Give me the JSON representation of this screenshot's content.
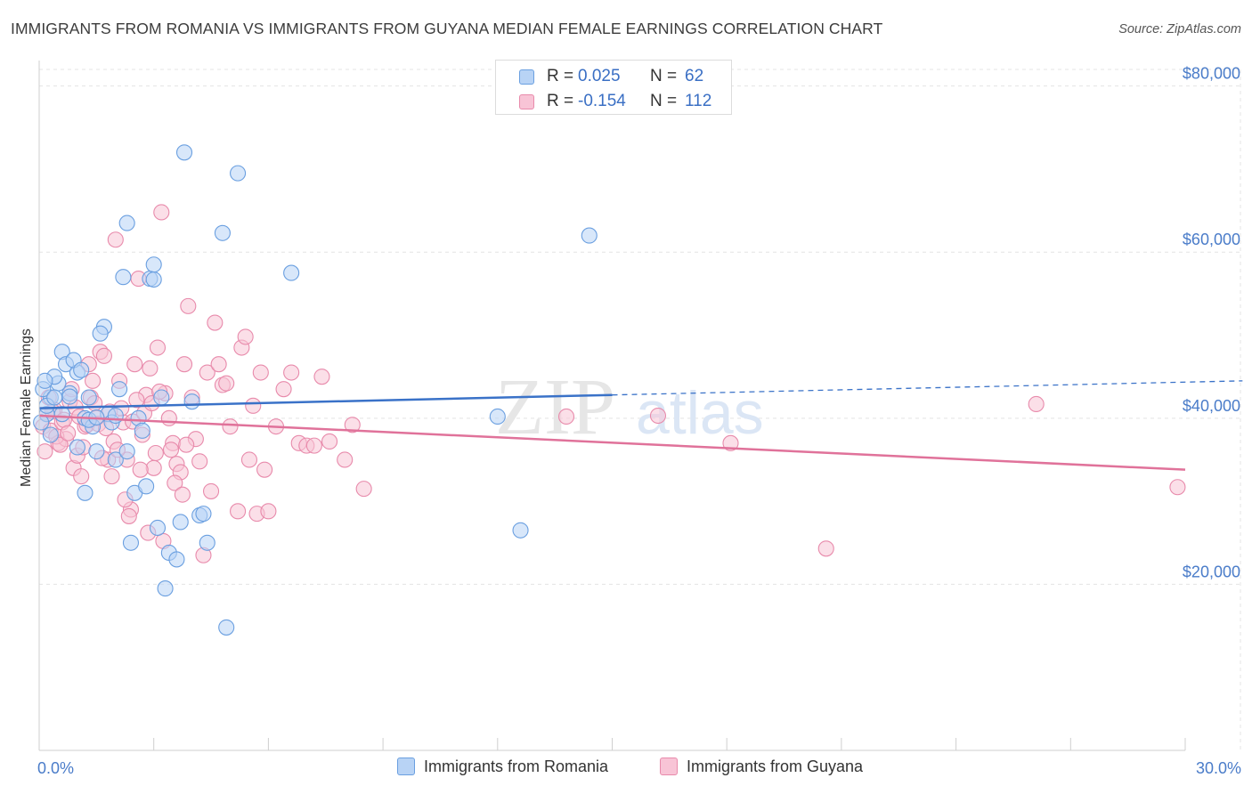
{
  "title": "IMMIGRANTS FROM ROMANIA VS IMMIGRANTS FROM GUYANA MEDIAN FEMALE EARNINGS CORRELATION CHART",
  "source": "Source: ZipAtlas.com",
  "colors": {
    "romania_fill": "#b8d3f5",
    "romania_stroke": "#6a9fe0",
    "romania_line": "#3a72c8",
    "guyana_fill": "#f8c4d6",
    "guyana_stroke": "#e88aab",
    "guyana_line": "#e0729a",
    "grid": "#e4e4e4",
    "tick_label": "#4a7cc9"
  },
  "legend": {
    "r_label": "R =",
    "n_label": "N =",
    "romania_r": "0.025",
    "romania_n": "62",
    "guyana_r": "-0.154",
    "guyana_n": "112"
  },
  "watermark": {
    "zip": "ZIP",
    "atlas": "atlas"
  },
  "chart_data": {
    "type": "scatter",
    "xlabel": "",
    "ylabel": "Median Female Earnings",
    "xlim": [
      0,
      30
    ],
    "ylim": [
      0,
      82000
    ],
    "x_tick_labels": [
      "0.0%",
      "30.0%"
    ],
    "y_ticks": [
      20000,
      40000,
      60000,
      80000
    ],
    "y_tick_labels": [
      "$20,000",
      "$40,000",
      "$60,000",
      "$80,000"
    ],
    "grid": true,
    "series": [
      {
        "name": "Immigrants from Romania",
        "trend": {
          "x": [
            0,
            15
          ],
          "y": [
            41200,
            42800
          ],
          "dashed_to_x": 31.5,
          "dashed_to_y": 44500
        },
        "points": [
          [
            0.3,
            42500
          ],
          [
            0.2,
            40500
          ],
          [
            0.5,
            44200
          ],
          [
            0.6,
            48000
          ],
          [
            0.7,
            46500
          ],
          [
            0.8,
            43000
          ],
          [
            1.0,
            45500
          ],
          [
            0.9,
            47000
          ],
          [
            1.1,
            45800
          ],
          [
            1.2,
            40000
          ],
          [
            1.3,
            42500
          ],
          [
            1.4,
            39000
          ],
          [
            1.5,
            36000
          ],
          [
            1.7,
            51000
          ],
          [
            1.6,
            50200
          ],
          [
            1.8,
            40500
          ],
          [
            1.9,
            39500
          ],
          [
            2.0,
            35000
          ],
          [
            2.1,
            43500
          ],
          [
            2.2,
            57000
          ],
          [
            2.3,
            63500
          ],
          [
            2.3,
            36000
          ],
          [
            2.4,
            25000
          ],
          [
            2.5,
            31000
          ],
          [
            2.6,
            40000
          ],
          [
            2.7,
            38500
          ],
          [
            2.8,
            31800
          ],
          [
            2.9,
            56800
          ],
          [
            3.0,
            58500
          ],
          [
            3.0,
            56700
          ],
          [
            3.1,
            26800
          ],
          [
            3.2,
            42500
          ],
          [
            3.3,
            19500
          ],
          [
            3.4,
            23800
          ],
          [
            3.6,
            23000
          ],
          [
            3.7,
            27500
          ],
          [
            3.8,
            72000
          ],
          [
            4.0,
            42000
          ],
          [
            4.2,
            28300
          ],
          [
            4.3,
            28500
          ],
          [
            4.4,
            25000
          ],
          [
            4.8,
            62300
          ],
          [
            4.9,
            14800
          ],
          [
            5.2,
            69500
          ],
          [
            6.6,
            57500
          ],
          [
            12.0,
            40200
          ],
          [
            12.6,
            26500
          ],
          [
            14.4,
            62000
          ],
          [
            0.1,
            43500
          ],
          [
            0.4,
            45000
          ],
          [
            1.2,
            31000
          ],
          [
            0.2,
            41500
          ],
          [
            0.4,
            42500
          ],
          [
            0.6,
            40500
          ],
          [
            1.0,
            36500
          ],
          [
            1.3,
            39800
          ],
          [
            2.0,
            40300
          ],
          [
            0.3,
            38000
          ],
          [
            0.8,
            42600
          ],
          [
            1.5,
            40100
          ],
          [
            0.05,
            39500
          ],
          [
            0.15,
            44500
          ]
        ]
      },
      {
        "name": "Immigrants from Guyana",
        "trend": {
          "x": [
            0,
            30
          ],
          "y": [
            40300,
            33800
          ]
        },
        "points": [
          [
            0.1,
            39000
          ],
          [
            0.2,
            40500
          ],
          [
            0.3,
            38500
          ],
          [
            0.4,
            41000
          ],
          [
            0.5,
            37000
          ],
          [
            0.6,
            39500
          ],
          [
            0.7,
            37500
          ],
          [
            0.8,
            42000
          ],
          [
            0.9,
            34000
          ],
          [
            1.0,
            35500
          ],
          [
            1.1,
            33000
          ],
          [
            1.2,
            39000
          ],
          [
            1.3,
            46500
          ],
          [
            1.4,
            44500
          ],
          [
            1.5,
            40000
          ],
          [
            1.6,
            48000
          ],
          [
            1.7,
            47500
          ],
          [
            1.8,
            35000
          ],
          [
            1.9,
            33000
          ],
          [
            2.0,
            61500
          ],
          [
            2.1,
            44500
          ],
          [
            2.2,
            39500
          ],
          [
            2.3,
            35000
          ],
          [
            2.4,
            29000
          ],
          [
            2.5,
            46500
          ],
          [
            2.6,
            56800
          ],
          [
            2.7,
            38000
          ],
          [
            2.8,
            42800
          ],
          [
            2.9,
            46000
          ],
          [
            3.0,
            34000
          ],
          [
            3.1,
            48500
          ],
          [
            3.2,
            64800
          ],
          [
            3.3,
            43000
          ],
          [
            3.4,
            40000
          ],
          [
            3.5,
            37000
          ],
          [
            3.6,
            34500
          ],
          [
            3.7,
            33500
          ],
          [
            3.8,
            46500
          ],
          [
            3.9,
            53500
          ],
          [
            4.0,
            42500
          ],
          [
            4.1,
            37500
          ],
          [
            4.2,
            34800
          ],
          [
            4.3,
            23500
          ],
          [
            4.4,
            45500
          ],
          [
            4.5,
            31200
          ],
          [
            4.6,
            51500
          ],
          [
            4.7,
            46500
          ],
          [
            4.8,
            44000
          ],
          [
            4.9,
            44200
          ],
          [
            5.0,
            39000
          ],
          [
            5.2,
            28800
          ],
          [
            5.3,
            48500
          ],
          [
            5.4,
            49800
          ],
          [
            5.5,
            35000
          ],
          [
            5.6,
            41500
          ],
          [
            5.7,
            28500
          ],
          [
            5.8,
            45500
          ],
          [
            5.9,
            33800
          ],
          [
            6.0,
            28800
          ],
          [
            6.2,
            39000
          ],
          [
            6.4,
            43500
          ],
          [
            6.6,
            45500
          ],
          [
            6.8,
            37000
          ],
          [
            7.0,
            36700
          ],
          [
            7.2,
            36700
          ],
          [
            7.4,
            45000
          ],
          [
            7.6,
            37200
          ],
          [
            8.0,
            35000
          ],
          [
            8.2,
            39200
          ],
          [
            8.5,
            31500
          ],
          [
            13.8,
            40200
          ],
          [
            16.2,
            40300
          ],
          [
            18.1,
            37000
          ],
          [
            20.6,
            24300
          ],
          [
            26.1,
            41700
          ],
          [
            29.8,
            31700
          ],
          [
            0.15,
            36000
          ],
          [
            0.25,
            42500
          ],
          [
            0.35,
            40800
          ],
          [
            0.45,
            37800
          ],
          [
            0.55,
            36800
          ],
          [
            0.65,
            39800
          ],
          [
            0.75,
            38200
          ],
          [
            0.85,
            43500
          ],
          [
            0.95,
            41300
          ],
          [
            1.05,
            40200
          ],
          [
            1.15,
            36500
          ],
          [
            1.25,
            39200
          ],
          [
            1.35,
            42500
          ],
          [
            1.45,
            41800
          ],
          [
            1.55,
            39300
          ],
          [
            1.65,
            35200
          ],
          [
            1.75,
            38800
          ],
          [
            1.85,
            40800
          ],
          [
            1.95,
            37200
          ],
          [
            2.05,
            36200
          ],
          [
            2.15,
            41200
          ],
          [
            2.25,
            30200
          ],
          [
            2.35,
            28200
          ],
          [
            2.45,
            39600
          ],
          [
            2.55,
            42200
          ],
          [
            2.65,
            33800
          ],
          [
            2.75,
            40600
          ],
          [
            2.85,
            26200
          ],
          [
            2.95,
            41800
          ],
          [
            3.05,
            35800
          ],
          [
            3.15,
            43200
          ],
          [
            3.25,
            25200
          ],
          [
            3.45,
            36200
          ],
          [
            3.55,
            32200
          ],
          [
            3.75,
            30800
          ],
          [
            3.85,
            36800
          ]
        ]
      }
    ]
  }
}
